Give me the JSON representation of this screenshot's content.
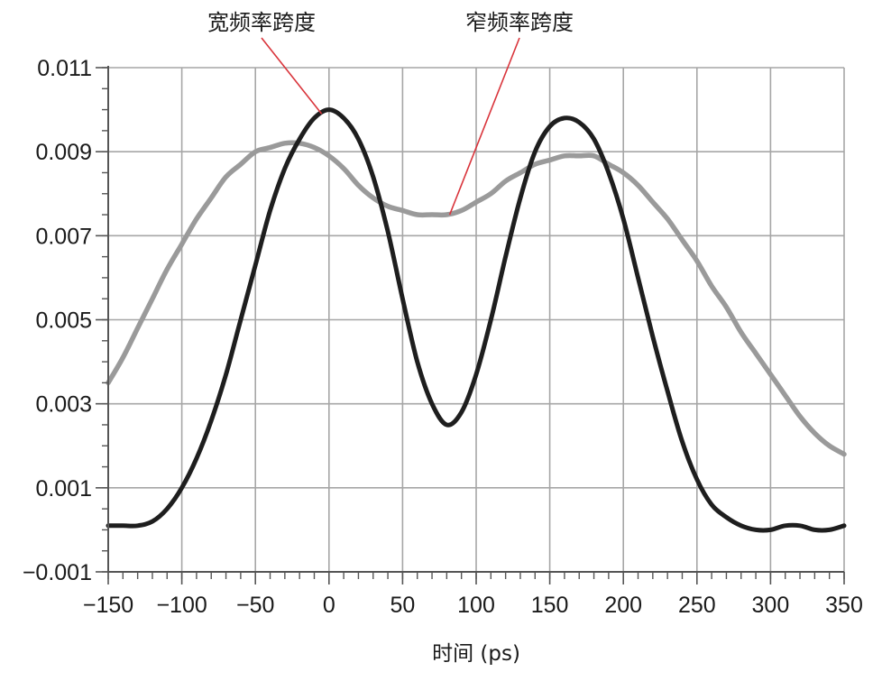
{
  "chart_data": {
    "type": "line",
    "xlabel": "时间 (ps)",
    "ylabel": "",
    "xlim": [
      -150,
      350
    ],
    "ylim": [
      -0.001,
      0.011
    ],
    "x_ticks": [
      -150,
      -100,
      -50,
      0,
      50,
      100,
      150,
      200,
      250,
      300,
      350
    ],
    "x_tick_labels": [
      "−150",
      "−100",
      "−50",
      "0",
      "50",
      "100",
      "150",
      "200",
      "250",
      "300",
      "350"
    ],
    "y_ticks": [
      -0.001,
      0.001,
      0.003,
      0.005,
      0.007,
      0.009,
      0.011
    ],
    "y_tick_labels": [
      "−0.001",
      "0.001",
      "0.003",
      "0.005",
      "0.007",
      "0.009",
      "0.011"
    ],
    "grid": true,
    "series": [
      {
        "name": "宽频率跨度",
        "color": "#1e1e1e",
        "x": [
          -150,
          -140,
          -130,
          -120,
          -110,
          -100,
          -90,
          -80,
          -70,
          -60,
          -50,
          -40,
          -30,
          -20,
          -10,
          0,
          10,
          20,
          30,
          40,
          50,
          60,
          70,
          80,
          90,
          100,
          110,
          120,
          130,
          140,
          150,
          160,
          170,
          180,
          190,
          200,
          210,
          220,
          230,
          240,
          250,
          260,
          270,
          280,
          290,
          300,
          310,
          320,
          330,
          340,
          350
        ],
        "values": [
          0.0001,
          0.0001,
          0.0001,
          0.0002,
          0.0005,
          0.001,
          0.0017,
          0.0026,
          0.0037,
          0.005,
          0.0063,
          0.0076,
          0.0086,
          0.0093,
          0.0098,
          0.01,
          0.0098,
          0.0093,
          0.0084,
          0.0071,
          0.0055,
          0.004,
          0.003,
          0.0025,
          0.0028,
          0.0037,
          0.005,
          0.0065,
          0.0079,
          0.009,
          0.0096,
          0.0098,
          0.0097,
          0.0093,
          0.0085,
          0.0074,
          0.006,
          0.0046,
          0.0033,
          0.0021,
          0.0012,
          0.0006,
          0.0003,
          0.0001,
          0.0,
          0.0,
          0.0001,
          0.0001,
          0.0,
          0.0,
          0.0001
        ]
      },
      {
        "name": "窄频率跨度",
        "color": "#9a9a9a",
        "x": [
          -150,
          -140,
          -130,
          -120,
          -110,
          -100,
          -90,
          -80,
          -70,
          -60,
          -50,
          -40,
          -30,
          -20,
          -10,
          0,
          10,
          20,
          30,
          40,
          50,
          60,
          70,
          80,
          90,
          100,
          110,
          120,
          130,
          140,
          150,
          160,
          170,
          180,
          190,
          200,
          210,
          220,
          230,
          240,
          250,
          260,
          270,
          280,
          290,
          300,
          310,
          320,
          330,
          340,
          350
        ],
        "values": [
          0.0035,
          0.0041,
          0.0048,
          0.0055,
          0.0062,
          0.0068,
          0.0074,
          0.0079,
          0.0084,
          0.0087,
          0.009,
          0.0091,
          0.0092,
          0.0092,
          0.0091,
          0.0089,
          0.0086,
          0.0082,
          0.0079,
          0.0077,
          0.0076,
          0.0075,
          0.0075,
          0.0075,
          0.0076,
          0.0078,
          0.008,
          0.0083,
          0.0085,
          0.0087,
          0.0088,
          0.0089,
          0.0089,
          0.0089,
          0.0087,
          0.0085,
          0.0082,
          0.0078,
          0.0074,
          0.0069,
          0.0064,
          0.0058,
          0.0053,
          0.0047,
          0.0042,
          0.0037,
          0.0032,
          0.0027,
          0.0023,
          0.002,
          0.0018
        ]
      }
    ],
    "annotations": [
      {
        "text": "宽频率跨度",
        "target_series": 0,
        "point_x": -5,
        "point_y": 0.0099
      },
      {
        "text": "窄频率跨度",
        "target_series": 1,
        "point_x": 82,
        "point_y": 0.0075
      }
    ]
  }
}
